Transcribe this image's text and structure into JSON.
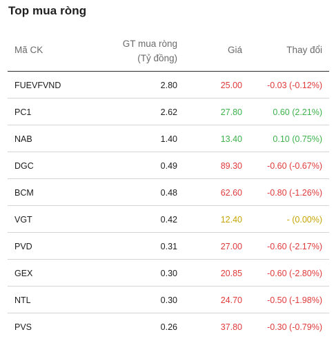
{
  "title": "Top mua ròng",
  "headers": {
    "code": "Mã CK",
    "value_line1": "GT mua ròng",
    "value_line2": "(Tỷ đồng)",
    "price": "Giá",
    "change": "Thay đổi"
  },
  "colors": {
    "down": "#e0393a",
    "up": "#3bb24a",
    "reference": "#c8a400"
  },
  "rows": [
    {
      "code": "FUEVFVND",
      "value": "2.80",
      "price": "25.00",
      "change": "-0.03 (-0.12%)",
      "trend": "down"
    },
    {
      "code": "PC1",
      "value": "2.62",
      "price": "27.80",
      "change": "0.60 (2.21%)",
      "trend": "up"
    },
    {
      "code": "NAB",
      "value": "1.40",
      "price": "13.40",
      "change": "0.10 (0.75%)",
      "trend": "up"
    },
    {
      "code": "DGC",
      "value": "0.49",
      "price": "89.30",
      "change": "-0.60 (-0.67%)",
      "trend": "down"
    },
    {
      "code": "BCM",
      "value": "0.48",
      "price": "62.60",
      "change": "-0.80 (-1.26%)",
      "trend": "down"
    },
    {
      "code": "VGT",
      "value": "0.42",
      "price": "12.40",
      "change": "- (0.00%)",
      "trend": "ref"
    },
    {
      "code": "PVD",
      "value": "0.31",
      "price": "27.00",
      "change": "-0.60 (-2.17%)",
      "trend": "down"
    },
    {
      "code": "GEX",
      "value": "0.30",
      "price": "20.85",
      "change": "-0.60 (-2.80%)",
      "trend": "down"
    },
    {
      "code": "NTL",
      "value": "0.30",
      "price": "24.70",
      "change": "-0.50 (-1.98%)",
      "trend": "down"
    },
    {
      "code": "PVS",
      "value": "0.26",
      "price": "37.80",
      "change": "-0.30 (-0.79%)",
      "trend": "down"
    }
  ]
}
